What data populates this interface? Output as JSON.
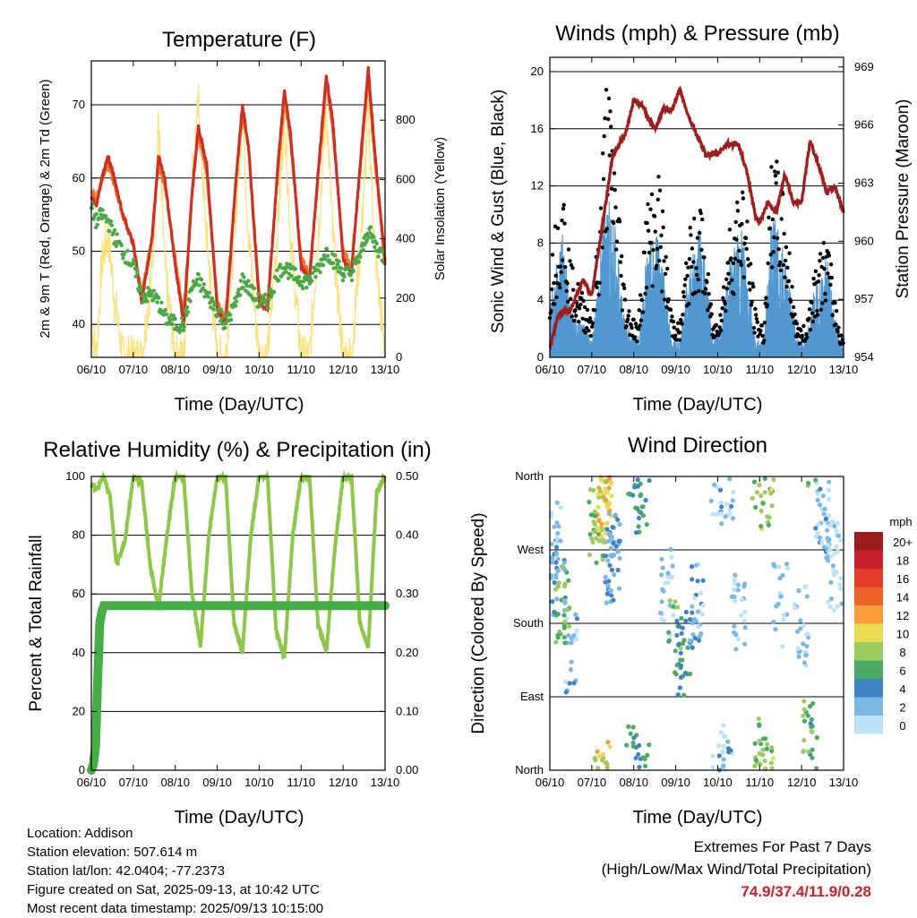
{
  "x_ticks": [
    "06/10",
    "07/10",
    "08/10",
    "09/10",
    "10/10",
    "11/10",
    "12/10",
    "13/10"
  ],
  "x_label": "Time (Day/UTC)",
  "colors": {
    "temp_red": "#d42a20",
    "temp_orange": "#f07628",
    "dewpoint_green": "#4aa845",
    "solar_yellow": "#fbe27a",
    "gust_black": "#000000",
    "wind_blue": "#5098d0",
    "pressure_maroon": "#a11c1c",
    "rh_green": "#8cc846",
    "precip_green": "#42b045",
    "extremes_text": "#c8202a"
  },
  "panels": {
    "temperature": {
      "title": "Temperature (F)",
      "ylabel_left": "2m & 9m T (Red, Orange) & 2m Td (Green)",
      "ylabel_right": "Solar Insolation (Yellow)",
      "left_ticks": [
        "40",
        "50",
        "60",
        "70"
      ],
      "right_ticks": [
        "0",
        "200",
        "400",
        "600",
        "800"
      ]
    },
    "winds": {
      "title": "Winds (mph) & Pressure (mb)",
      "ylabel_left": "Sonic Wind & Gust (Blue, Black)",
      "ylabel_right": "Station Pressure (Maroon)",
      "left_ticks": [
        "0",
        "4",
        "8",
        "12",
        "16",
        "20"
      ],
      "right_ticks": [
        "954",
        "957",
        "960",
        "963",
        "966",
        "969"
      ]
    },
    "humidity": {
      "title": "Relative Humidity (%) & Precipitation (in)",
      "ylabel_left": "Percent & Total Rainfall",
      "left_ticks": [
        "0",
        "20",
        "40",
        "60",
        "80",
        "100"
      ],
      "right_ticks": [
        "0.00",
        "0.10",
        "0.20",
        "0.30",
        "0.40",
        "0.50"
      ]
    },
    "direction": {
      "title": "Wind Direction",
      "ylabel_left": "Direction (Colored By Speed)",
      "left_ticks": [
        "North",
        "East",
        "South",
        "West",
        "North"
      ],
      "legend_title": "mph",
      "legend_labels": [
        "20+",
        "18",
        "16",
        "14",
        "12",
        "10",
        "8",
        "6",
        "4",
        "2",
        "0"
      ],
      "legend_colors": [
        "#9c1c1c",
        "#c8202a",
        "#e43c28",
        "#f0642c",
        "#f89c3c",
        "#e8dc50",
        "#9ccc5c",
        "#4aac64",
        "#3c84c4",
        "#7cb8e4",
        "#bce4f8"
      ]
    }
  },
  "info": {
    "location": "Location: Addison",
    "elevation": "Station elevation: 507.614 m",
    "latlon": "Station lat/lon: 42.0404; -77.2373",
    "created": "Figure created on Sat, 2025-09-13, at 10:42 UTC",
    "recent": "Most recent data timestamp: 2025/09/13 10:15:00"
  },
  "extremes": {
    "line1": "Extremes For Past 7 Days",
    "line2": "(High/Low/Max Wind/Total Precipitation)",
    "values": "74.9/37.4/11.9/0.28"
  },
  "chart_data": [
    {
      "type": "line",
      "title": "Temperature (F)",
      "xlabel": "Time (Day/UTC)",
      "ylabel": "2m & 9m T (Red, Orange) & 2m Td (Green)",
      "y2label": "Solar Insolation (Yellow)",
      "xlim": [
        0,
        7
      ],
      "ylim": [
        35.5,
        76
      ],
      "y2lim": [
        0,
        1000
      ],
      "x": [
        0,
        0.12,
        0.25,
        0.4,
        0.55,
        0.75,
        1.0,
        1.2,
        1.45,
        1.6,
        1.75,
        2.0,
        2.2,
        2.4,
        2.55,
        2.75,
        3.0,
        3.2,
        3.45,
        3.6,
        3.75,
        4.0,
        4.2,
        4.45,
        4.6,
        4.75,
        5.0,
        5.2,
        5.45,
        5.6,
        5.75,
        6.0,
        6.2,
        6.45,
        6.6,
        6.75,
        7.0
      ],
      "series": [
        {
          "name": "2m T",
          "values": [
            57.5,
            56,
            60,
            63,
            60,
            55,
            51,
            43,
            52,
            63,
            60,
            48,
            40,
            58,
            67,
            62,
            42,
            40,
            60,
            70,
            64,
            43,
            42,
            62,
            72,
            66,
            48,
            46,
            64,
            74,
            68,
            49,
            47,
            65,
            75,
            64,
            48
          ]
        },
        {
          "name": "9m T",
          "values": [
            58,
            57,
            60,
            62,
            59,
            55,
            51,
            44,
            52,
            62,
            59,
            49,
            41,
            58,
            66,
            61,
            43,
            41,
            60,
            69,
            64,
            44,
            43,
            61,
            71,
            65,
            49,
            47,
            63,
            73,
            67,
            50,
            48,
            64,
            74,
            63,
            49
          ]
        },
        {
          "name": "2m Td",
          "values": [
            56,
            54,
            55,
            54,
            52,
            50,
            48,
            44,
            44,
            43,
            41,
            40,
            40,
            45,
            46,
            44,
            42,
            40,
            43,
            46,
            45,
            43,
            43,
            47,
            48,
            47,
            46,
            46,
            48,
            50,
            49,
            47,
            47,
            50,
            53,
            51,
            49
          ]
        },
        {
          "name": "Solar Insolation",
          "y2": true,
          "values": [
            120,
            0,
            320,
            420,
            200,
            0,
            0,
            0,
            300,
            800,
            300,
            0,
            0,
            600,
            850,
            400,
            0,
            0,
            500,
            840,
            400,
            0,
            0,
            450,
            820,
            400,
            0,
            0,
            500,
            860,
            420,
            0,
            0,
            450,
            820,
            380,
            0
          ]
        }
      ]
    },
    {
      "type": "line",
      "title": "Winds (mph) & Pressure (mb)",
      "xlabel": "Time (Day/UTC)",
      "ylabel": "Sonic Wind & Gust (Blue, Black)",
      "y2label": "Station Pressure (Maroon)",
      "xlim": [
        0,
        7
      ],
      "ylim": [
        0,
        21
      ],
      "y2lim": [
        954,
        969.5
      ],
      "series": [
        {
          "name": "Gust",
          "x": [
            0,
            0.3,
            0.5,
            0.8,
            1.0,
            1.2,
            1.35,
            1.6,
            1.8,
            2.1,
            2.3,
            2.6,
            2.9,
            3.1,
            3.3,
            3.6,
            3.9,
            4.1,
            4.3,
            4.6,
            4.9,
            5.1,
            5.3,
            5.6,
            5.9,
            6.1,
            6.3,
            6.6,
            6.9,
            7.0
          ],
          "values": [
            6,
            12,
            6,
            4,
            3,
            10,
            19,
            12,
            4,
            2,
            10,
            12,
            3,
            2,
            8,
            10,
            2,
            4,
            9,
            12,
            3,
            2,
            14,
            10,
            2,
            2,
            6,
            8,
            2,
            1.5
          ]
        },
        {
          "name": "Sonic Wind",
          "x": [
            0,
            0.3,
            0.5,
            0.8,
            1.0,
            1.2,
            1.35,
            1.6,
            1.8,
            2.1,
            2.3,
            2.6,
            2.9,
            3.1,
            3.3,
            3.6,
            3.9,
            4.1,
            4.3,
            4.6,
            4.9,
            5.1,
            5.3,
            5.6,
            5.9,
            6.1,
            6.3,
            6.6,
            6.9,
            7.0
          ],
          "values": [
            3,
            8,
            3,
            2,
            1,
            6,
            11,
            7,
            2,
            1,
            6,
            8,
            1,
            1,
            5,
            8,
            1,
            2,
            6,
            8,
            1,
            1,
            9,
            6,
            1,
            1,
            4,
            6,
            1,
            1
          ]
        },
        {
          "name": "Station Pressure",
          "y2": true,
          "x": [
            0,
            0.2,
            0.5,
            0.8,
            1.0,
            1.3,
            1.5,
            1.8,
            2.0,
            2.2,
            2.5,
            2.7,
            2.9,
            3.1,
            3.3,
            3.5,
            3.7,
            4.0,
            4.2,
            4.5,
            4.7,
            4.9,
            5.0,
            5.2,
            5.4,
            5.6,
            5.8,
            6.0,
            6.2,
            6.4,
            6.6,
            6.8,
            7.0
          ],
          "values": [
            954.5,
            956.2,
            956.5,
            958,
            957.2,
            961.5,
            964.5,
            965.5,
            967.3,
            967,
            965.8,
            966.8,
            966.8,
            967.8,
            966.5,
            965.5,
            964.5,
            964.5,
            965,
            965,
            963.5,
            961.3,
            961,
            962,
            961.5,
            963.5,
            962,
            962,
            965.2,
            964,
            962.5,
            962.8,
            961.5
          ]
        }
      ]
    },
    {
      "type": "line",
      "title": "Relative Humidity (%) & Precipitation (in)",
      "xlabel": "Time (Day/UTC)",
      "ylabel": "Percent & Total Rainfall",
      "xlim": [
        0,
        7
      ],
      "ylim": [
        0,
        100
      ],
      "y2lim": [
        0,
        0.5
      ],
      "series": [
        {
          "name": "Relative Humidity",
          "x": [
            0,
            0.15,
            0.3,
            0.45,
            0.6,
            0.8,
            1.0,
            1.2,
            1.4,
            1.6,
            1.8,
            2.0,
            2.2,
            2.4,
            2.6,
            2.8,
            3.0,
            3.2,
            3.4,
            3.6,
            3.8,
            4.0,
            4.2,
            4.4,
            4.6,
            4.8,
            5.0,
            5.2,
            5.4,
            5.6,
            5.8,
            6.0,
            6.2,
            6.4,
            6.6,
            6.8,
            7.0
          ],
          "values": [
            97,
            96,
            100,
            93,
            70,
            78,
            100,
            98,
            70,
            55,
            80,
            100,
            100,
            60,
            42,
            80,
            100,
            100,
            50,
            40,
            80,
            100,
            100,
            48,
            38,
            80,
            100,
            100,
            50,
            40,
            75,
            100,
            100,
            50,
            42,
            95,
            100
          ]
        },
        {
          "name": "Total Precipitation",
          "y2": true,
          "x": [
            0,
            0.05,
            0.1,
            0.15,
            0.2,
            0.25,
            0.3,
            7.0
          ],
          "values": [
            0,
            0.01,
            0.04,
            0.15,
            0.25,
            0.27,
            0.28,
            0.28
          ]
        }
      ]
    },
    {
      "type": "scatter",
      "title": "Wind Direction",
      "xlabel": "Time (Day/UTC)",
      "ylabel": "Direction (Colored By Speed)",
      "y_ticks": [
        "North",
        "East",
        "South",
        "West",
        "North"
      ],
      "xlim": [
        0,
        7
      ],
      "ylim": [
        0,
        360
      ],
      "legend": {
        "title": "mph",
        "placement": "right"
      },
      "series": [
        {
          "name": "Wind Direction",
          "x": [
            0.1,
            0.2,
            0.3,
            0.5,
            1.1,
            1.2,
            1.3,
            1.5,
            2.0,
            2.2,
            2.8,
            3.0,
            3.2,
            3.5,
            4.0,
            4.2,
            4.5,
            5.0,
            5.2,
            5.5,
            6.0,
            6.2,
            6.5,
            6.8
          ],
          "values": [
            280,
            240,
            200,
            150,
            300,
            320,
            340,
            260,
            10,
            340,
            220,
            170,
            140,
            200,
            5,
            350,
            190,
            10,
            350,
            200,
            180,
            30,
            300,
            250
          ],
          "speed_mph": [
            2,
            4,
            8,
            3,
            8,
            10,
            12,
            4,
            6,
            6,
            2,
            7,
            6,
            3,
            1,
            3,
            2,
            8,
            9,
            2,
            2,
            7,
            3,
            1
          ]
        }
      ]
    }
  ]
}
